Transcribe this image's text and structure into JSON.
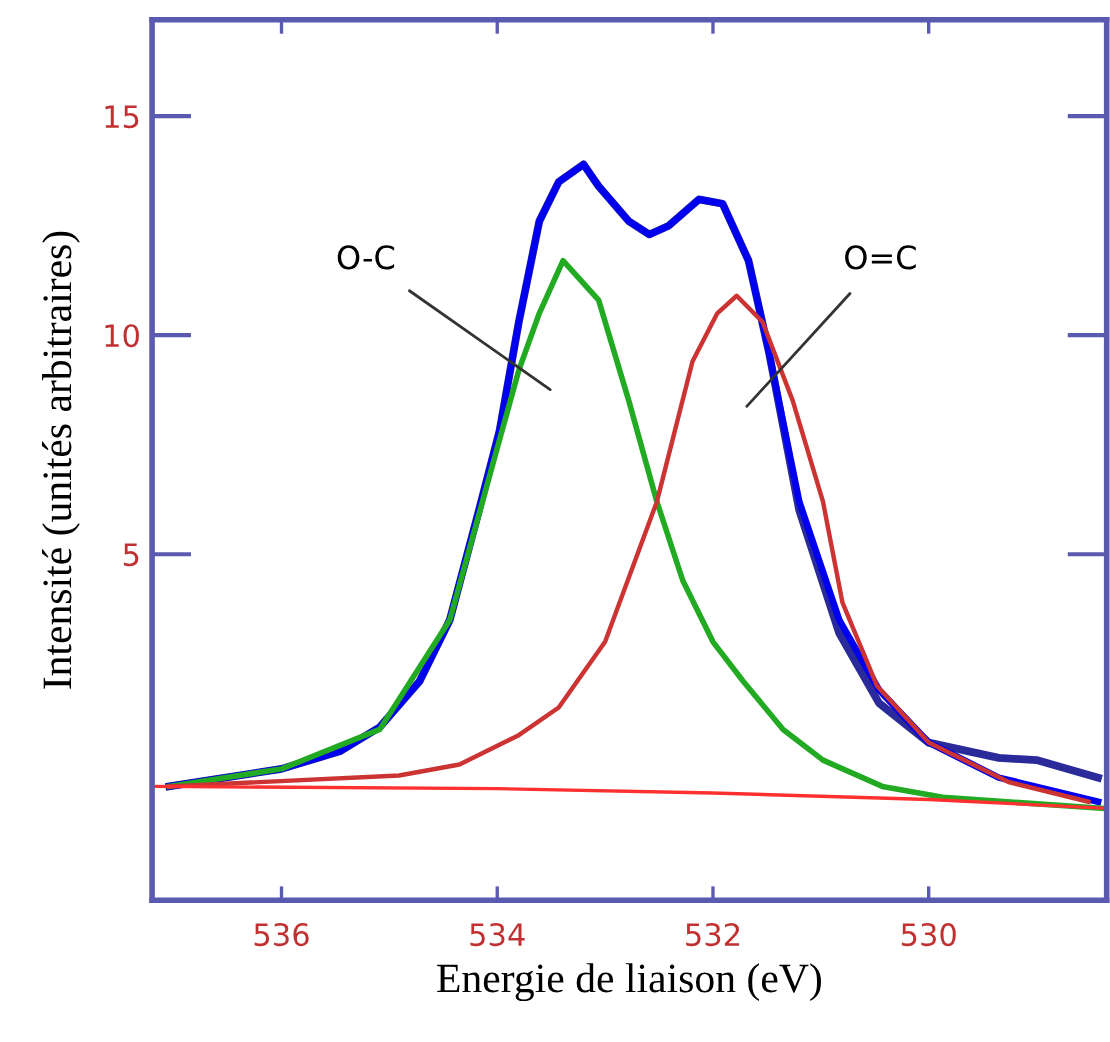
{
  "chart_data": {
    "type": "line",
    "xlabel": "Energie de liaison (eV)",
    "ylabel": "Intensité (unités arbitraires)",
    "xlim": [
      537.2,
      528.35
    ],
    "ylim": [
      -2.9,
      17.2
    ],
    "xticks": [
      536,
      534,
      532,
      530
    ],
    "yticks": [
      5,
      10,
      15
    ],
    "grid": false,
    "legend": false,
    "marker": "none",
    "line_style": "solid",
    "annotations": [
      "O-C",
      "O=C"
    ],
    "series": [
      {
        "color": "#2a2a9a",
        "x": [
          537.04,
          536.0,
          535.46,
          535.09,
          534.72,
          534.44,
          534.17,
          533.98,
          533.8,
          533.61,
          533.43,
          533.2,
          533.06,
          532.78,
          532.59,
          532.41,
          532.13,
          531.91,
          531.67,
          531.48,
          531.2,
          530.83,
          530.46,
          530.0,
          529.35,
          529.0,
          528.43
        ],
        "values": [
          -0.3,
          0.1,
          0.5,
          1.05,
          2.1,
          3.5,
          6.0,
          7.8,
          10.3,
          12.6,
          13.5,
          13.9,
          13.4,
          12.6,
          12.3,
          12.5,
          13.1,
          13.0,
          11.7,
          9.6,
          6.0,
          3.2,
          1.6,
          0.7,
          0.35,
          0.3,
          -0.1
        ]
      },
      {
        "color": "#0000ee",
        "x": [
          537.04,
          536.0,
          535.46,
          535.09,
          534.72,
          534.44,
          534.17,
          533.98,
          533.8,
          533.61,
          533.43,
          533.2,
          533.06,
          532.78,
          532.59,
          532.41,
          532.13,
          531.91,
          531.67,
          531.48,
          531.2,
          530.83,
          530.46,
          530.0,
          529.35,
          528.43
        ],
        "values": [
          -0.3,
          0.1,
          0.5,
          1.05,
          2.1,
          3.5,
          6.0,
          7.8,
          10.3,
          12.6,
          13.5,
          13.9,
          13.4,
          12.6,
          12.3,
          12.5,
          13.1,
          13.0,
          11.7,
          9.6,
          6.2,
          3.5,
          1.9,
          0.7,
          -0.1,
          -0.65
        ]
      },
      {
        "color": "#22aa22",
        "x": [
          537.04,
          536.0,
          535.09,
          534.44,
          533.98,
          533.8,
          533.61,
          533.39,
          533.06,
          532.78,
          532.52,
          532.28,
          532.0,
          531.72,
          531.35,
          530.98,
          530.43,
          529.87,
          528.39
        ],
        "values": [
          -0.3,
          0.1,
          1.0,
          3.5,
          7.6,
          9.2,
          10.5,
          11.7,
          10.8,
          8.5,
          6.2,
          4.4,
          3.0,
          2.1,
          1.0,
          0.3,
          -0.3,
          -0.55,
          -0.8
        ]
      },
      {
        "color": "#cc3333",
        "x": [
          537.04,
          534.91,
          534.35,
          533.8,
          533.43,
          533.0,
          532.52,
          532.19,
          531.96,
          531.78,
          531.54,
          531.26,
          530.98,
          530.8,
          530.48,
          530.0,
          529.26,
          528.52
        ],
        "values": [
          -0.3,
          -0.05,
          0.2,
          0.87,
          1.5,
          3.0,
          6.2,
          9.4,
          10.5,
          10.9,
          10.3,
          8.5,
          6.2,
          3.9,
          2.0,
          0.7,
          -0.2,
          -0.65
        ]
      },
      {
        "color": "#ff3030",
        "x": [
          537.2,
          534.0,
          532.0,
          530.0,
          528.35
        ],
        "values": [
          -0.3,
          -0.35,
          -0.45,
          -0.6,
          -0.8
        ]
      }
    ]
  }
}
